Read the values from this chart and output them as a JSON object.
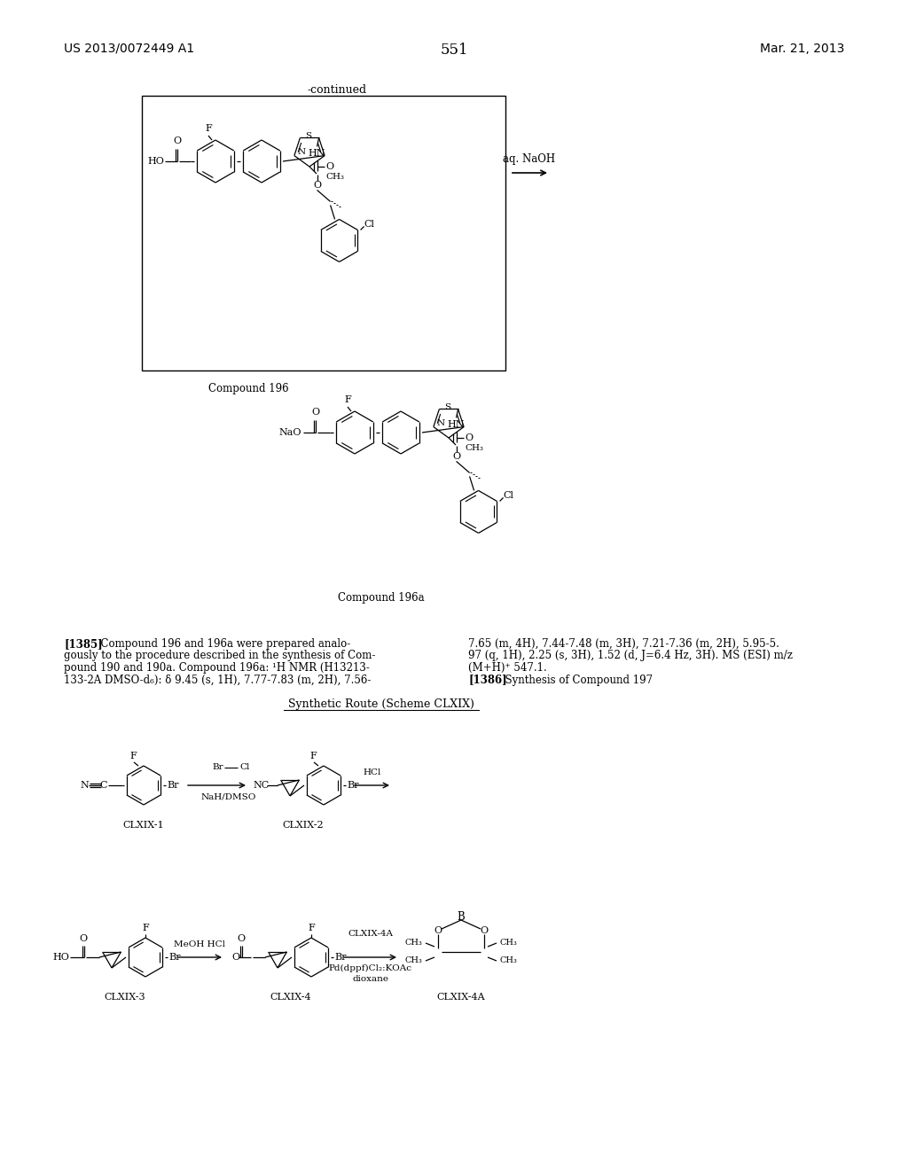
{
  "bg_color": "#ffffff",
  "header_left": "US 2013/0072449 A1",
  "header_right": "Mar. 21, 2013",
  "page_number": "551",
  "continued_label": "-continued",
  "compound_196_label": "Compound 196",
  "compound_196a_label": "Compound 196a",
  "reagent_naoh": "aq. NaOH",
  "p1385_bold": "[1385]",
  "p1385_l1": "  Compound 196 and 196a were prepared analo-",
  "p1385_l2": "gously to the procedure described in the synthesis of Com-",
  "p1385_l3": "pound 190 and 190a. Compound 196a: ¹H NMR (H13213-",
  "p1385_l4": "133-2A DMSO-d₆): δ 9.45 (s, 1H), 7.77-7.83 (m, 2H), 7.56-",
  "p1385_r1": "7.65 (m, 4H), 7.44-7.48 (m, 3H), 7.21-7.36 (m, 2H), 5.95-5.",
  "p1385_r2": "97 (q, 1H), 2.25 (s, 3H), 1.52 (d, J=6.4 Hz, 3H). MS (ESI) m/z",
  "p1385_r3": "(M+H)⁺ 547.1.",
  "p1386_bold": "[1386]",
  "p1386_rest": "  Synthesis of Compound 197",
  "scheme_label": "Synthetic Route (Scheme CLXIX)",
  "clxix1_label": "CLXIX-1",
  "clxix2_label": "CLXIX-2",
  "clxix3_label": "CLXIX-3",
  "clxix4_label": "CLXIX-4",
  "clxix4a_label": "CLXIX-4A",
  "reagent_br_cl": "Br",
  "reagent_br_cl2": "Cl",
  "reagent_1": "NaH/DMSO",
  "reagent_2": "HCl",
  "reagent_3": "MeOH HCl",
  "reagent_4a": "CLXIX-4A",
  "reagent_4b": "Pd(dppf)Cl₂:KOAc",
  "reagent_4c": "dioxane"
}
